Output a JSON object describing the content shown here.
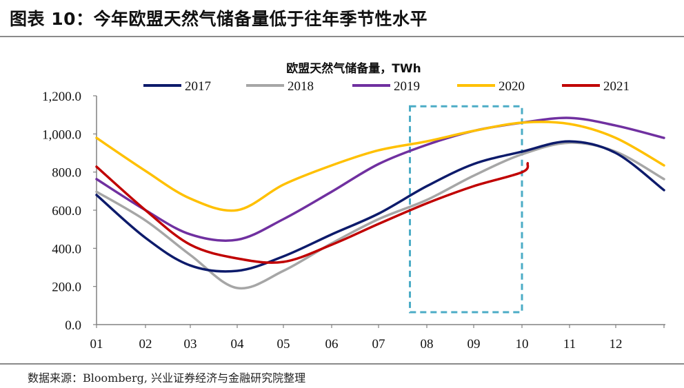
{
  "figure": {
    "title": "图表 10：今年欧盟天然气储备量低于往年季节性水平",
    "source": "数据来源：Bloomberg, 兴业证券经济与金融研究院整理"
  },
  "colors": {
    "2017": "#0d1b6b",
    "2018": "#a6a6a6",
    "2019": "#7030a0",
    "2020": "#ffc000",
    "2021": "#c00000",
    "highlight_box": "#4bacc6",
    "axis": "#808080"
  },
  "chart_data": {
    "type": "line",
    "title": "欧盟天然气储备量，TWh",
    "xlabel": "",
    "ylabel": "",
    "categories": [
      "01",
      "02",
      "03",
      "04",
      "05",
      "06",
      "07",
      "08",
      "09",
      "10",
      "11",
      "12"
    ],
    "x": [
      1,
      2,
      3,
      4,
      5,
      6,
      7,
      8,
      9,
      10,
      11,
      12,
      13
    ],
    "ylim": [
      0,
      1200
    ],
    "yticks": [
      0,
      200,
      400,
      600,
      800,
      1000,
      1200
    ],
    "ytick_labels": [
      "0.0",
      "200.0",
      "400.0",
      "600.0",
      "800.0",
      "1,000.0",
      "1,200.0"
    ],
    "grid": false,
    "legend_position": "top",
    "series": [
      {
        "name": "2017",
        "values": [
          680,
          455,
          310,
          282,
          358,
          473,
          582,
          726,
          842,
          907,
          961,
          900,
          705
        ]
      },
      {
        "name": "2018",
        "values": [
          697,
          546,
          365,
          192,
          282,
          426,
          553,
          654,
          781,
          893,
          954,
          907,
          763
        ]
      },
      {
        "name": "2019",
        "values": [
          763,
          600,
          473,
          445,
          553,
          697,
          842,
          943,
          1016,
          1059,
          1084,
          1044,
          979
        ]
      },
      {
        "name": "2020",
        "values": [
          979,
          806,
          661,
          600,
          734,
          835,
          914,
          961,
          1016,
          1059,
          1052,
          979,
          835
        ]
      },
      {
        "name": "2021",
        "values": [
          828,
          600,
          419,
          347,
          329,
          419,
          528,
          636,
          726,
          799,
          846
        ]
      }
    ],
    "series_2021_x": [
      1,
      2,
      3,
      4,
      5,
      6,
      7,
      8,
      9,
      10,
      10.12
    ],
    "annotations": [
      {
        "type": "dashed-box",
        "x_range": [
          7.65,
          10.0
        ],
        "y_range": [
          65,
          1145
        ],
        "note": "highlight Aug–Oct"
      }
    ]
  }
}
